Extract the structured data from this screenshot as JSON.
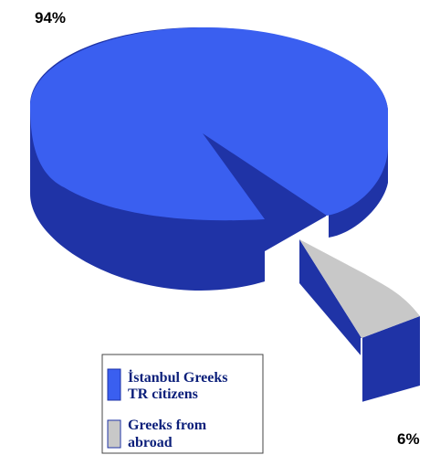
{
  "chart_data": {
    "type": "pie",
    "title": "",
    "series": [
      {
        "name": "İstanbul Greeks TR citizens",
        "value": 94,
        "label": "94%",
        "color": "#3a5ff0",
        "side_color": "#1f33a6"
      },
      {
        "name": "Greeks from abroad",
        "value": 6,
        "label": "6%",
        "color": "#c8c8c8",
        "side_color": "#1f33a6",
        "exploded": true
      }
    ],
    "legend": {
      "placement": "bottom-center",
      "entries": [
        {
          "line1": "İstanbul Greeks",
          "line2": "TR citizens"
        },
        {
          "line1": "Greeks from",
          "line2": "abroad"
        }
      ]
    },
    "style": "3d-exploded"
  }
}
